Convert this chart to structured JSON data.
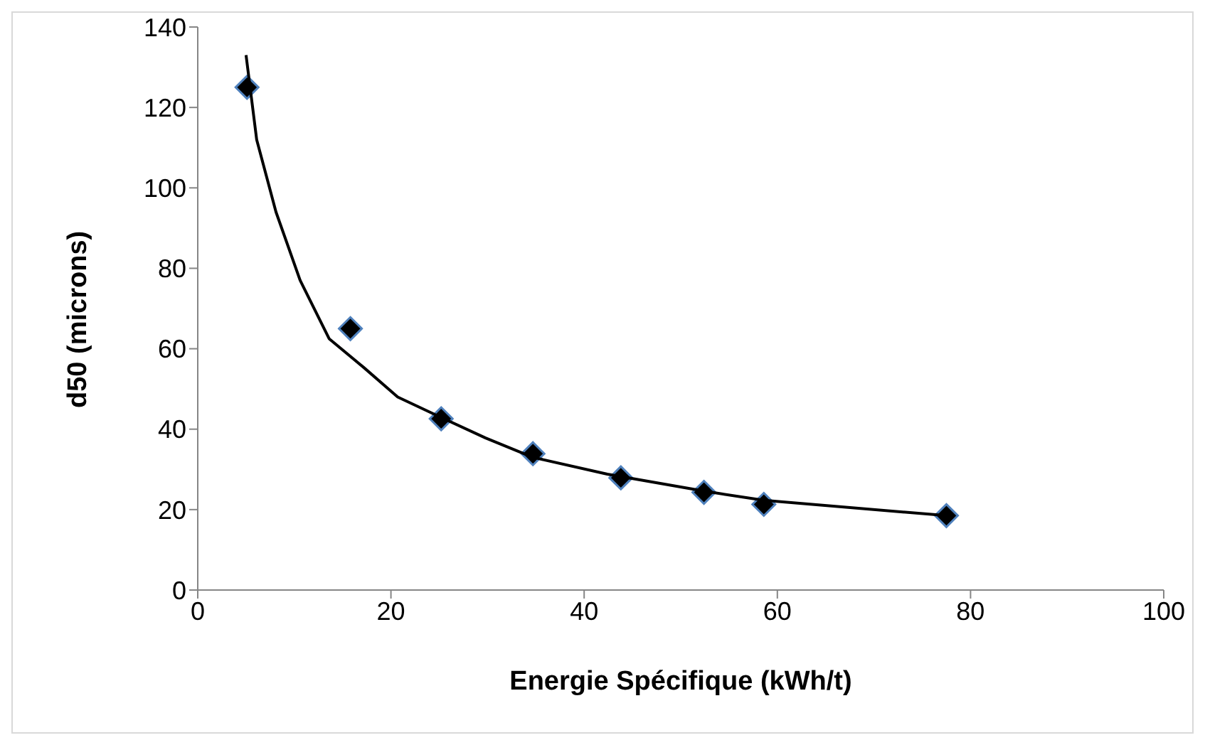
{
  "chart_data": {
    "type": "scatter",
    "xlabel": "Energie Spécifique (kWh/t)",
    "ylabel": "d50 (microns)",
    "marker": "diamond",
    "grid": false,
    "legend": false,
    "xlim": [
      0,
      100
    ],
    "xticks": [
      0,
      20,
      40,
      60,
      80,
      100
    ],
    "ylim": [
      0,
      140
    ],
    "yticks": [
      0,
      20,
      40,
      60,
      80,
      100,
      120,
      140
    ],
    "series": [
      {
        "color": "#000000",
        "x": [
          5.1,
          15.8,
          25.2,
          34.7,
          43.8,
          52.4,
          58.6,
          77.5
        ],
        "values": [
          125,
          65,
          42.6,
          33.9,
          27.9,
          24.3,
          21.3,
          18.5
        ]
      },
      {
        "type": "line",
        "color": "#000000",
        "marker": "none",
        "x": [
          5.0,
          6.1,
          8.1,
          10.6,
          13.6,
          17.2,
          20.7,
          25.2,
          29.8,
          34.7,
          42.4,
          52.4,
          58.6,
          77.5
        ],
        "values": [
          133,
          112,
          94,
          77,
          62.5,
          55.3,
          48,
          42.9,
          37.8,
          33,
          28.8,
          24.6,
          22.3,
          18.5
        ]
      }
    ]
  }
}
